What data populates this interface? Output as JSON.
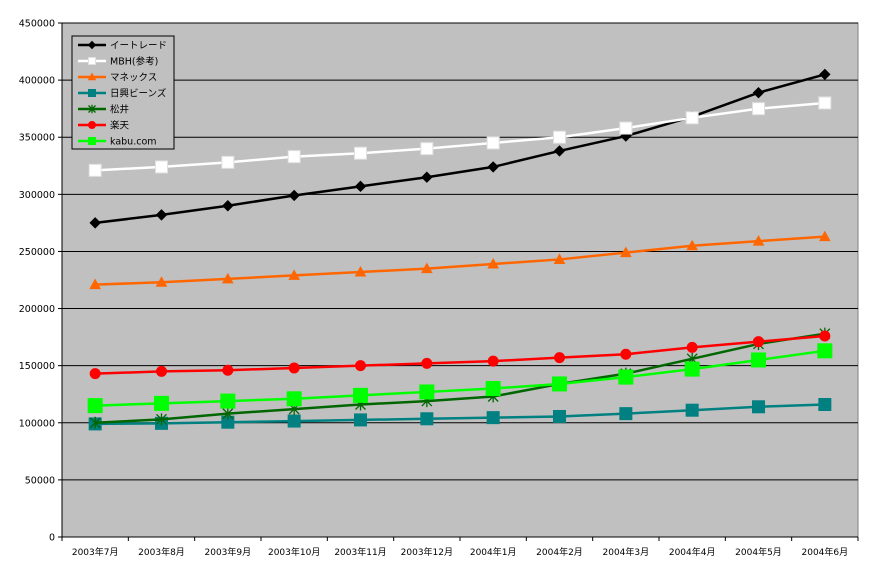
{
  "chart_data": {
    "type": "line",
    "title": "",
    "xlabel": "",
    "ylabel": "",
    "ylim": [
      0,
      450000
    ],
    "yticks": [
      0,
      50000,
      100000,
      150000,
      200000,
      250000,
      300000,
      350000,
      400000,
      450000
    ],
    "grid": true,
    "legend_position": "top-left",
    "plot_background": "#c0c0c0",
    "categories": [
      "2003年7月",
      "2003年8月",
      "2003年9月",
      "2003年10月",
      "2003年11月",
      "2003年12月",
      "2004年1月",
      "2004年2月",
      "2004年3月",
      "2004年4月",
      "2004年5月",
      "2004年6月"
    ],
    "series": [
      {
        "name": "イートレード",
        "color": "#000000",
        "marker": "diamond",
        "values": [
          275000,
          282000,
          290000,
          299000,
          307000,
          315000,
          324000,
          338000,
          351000,
          368000,
          389000,
          405000
        ]
      },
      {
        "name": "MBH(参考)",
        "color": "#ffffff",
        "marker": "square",
        "values": [
          321000,
          324000,
          328000,
          333000,
          336000,
          340000,
          345000,
          350000,
          358000,
          367000,
          375000,
          380000
        ]
      },
      {
        "name": "マネックス",
        "color": "#ff6600",
        "marker": "triangle",
        "values": [
          221000,
          223000,
          226000,
          229000,
          232000,
          235000,
          239000,
          243000,
          249000,
          255000,
          259000,
          263000
        ]
      },
      {
        "name": "日興ビーンズ",
        "color": "#008080",
        "marker": "square",
        "values": [
          99000,
          99500,
          100500,
          101500,
          102500,
          103500,
          104500,
          105500,
          108000,
          111000,
          114000,
          116000
        ]
      },
      {
        "name": "松井",
        "color": "#006600",
        "marker": "star",
        "values": [
          100000,
          103000,
          108000,
          112000,
          116000,
          119000,
          123000,
          134000,
          143000,
          156000,
          169000,
          178000
        ]
      },
      {
        "name": "楽天",
        "color": "#ff0000",
        "marker": "circle",
        "values": [
          143000,
          145000,
          146000,
          148000,
          150000,
          152000,
          154000,
          157000,
          160000,
          166000,
          171000,
          176000
        ]
      },
      {
        "name": "kabu.com",
        "color": "#00ff00",
        "marker": "square",
        "values": [
          115000,
          117000,
          119000,
          121000,
          124000,
          127000,
          130000,
          134000,
          140000,
          147000,
          155000,
          163000
        ]
      }
    ]
  }
}
